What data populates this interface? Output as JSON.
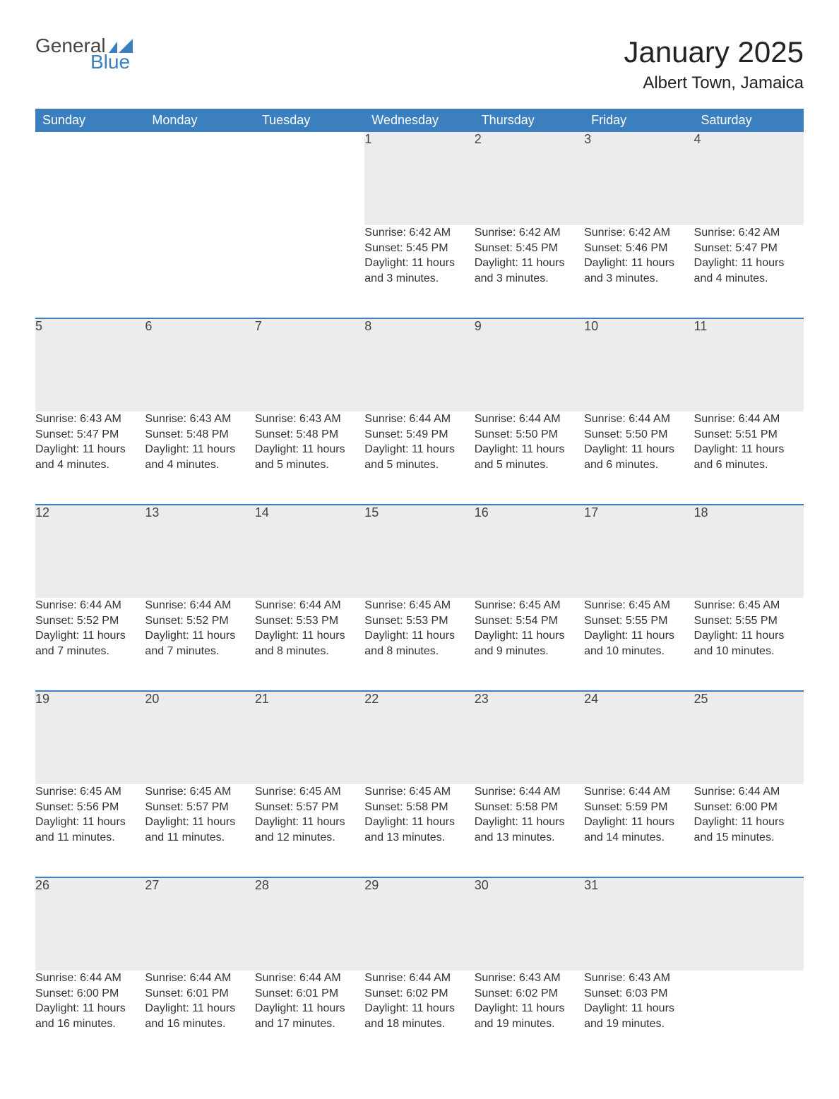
{
  "brand": {
    "line1": "General",
    "line2": "Blue",
    "accent": "#3b7fbf",
    "text": "#444444"
  },
  "title": "January 2025",
  "location": "Albert Town, Jamaica",
  "colors": {
    "header_bg": "#3b7fbf",
    "header_text": "#ffffff",
    "daynum_bg": "#ececec",
    "divider": "#3b7fbf",
    "body_text": "#333333",
    "background": "#ffffff"
  },
  "typography": {
    "title_fontsize": 42,
    "location_fontsize": 24,
    "header_fontsize": 18,
    "daynum_fontsize": 18,
    "cell_fontsize": 16,
    "font_family": "Arial"
  },
  "day_headers": [
    "Sunday",
    "Monday",
    "Tuesday",
    "Wednesday",
    "Thursday",
    "Friday",
    "Saturday"
  ],
  "weeks": [
    {
      "first": true,
      "days": [
        null,
        null,
        null,
        {
          "n": "1",
          "sunrise": "6:42 AM",
          "sunset": "5:45 PM",
          "daylight": "11 hours and 3 minutes."
        },
        {
          "n": "2",
          "sunrise": "6:42 AM",
          "sunset": "5:45 PM",
          "daylight": "11 hours and 3 minutes."
        },
        {
          "n": "3",
          "sunrise": "6:42 AM",
          "sunset": "5:46 PM",
          "daylight": "11 hours and 3 minutes."
        },
        {
          "n": "4",
          "sunrise": "6:42 AM",
          "sunset": "5:47 PM",
          "daylight": "11 hours and 4 minutes."
        }
      ]
    },
    {
      "days": [
        {
          "n": "5",
          "sunrise": "6:43 AM",
          "sunset": "5:47 PM",
          "daylight": "11 hours and 4 minutes."
        },
        {
          "n": "6",
          "sunrise": "6:43 AM",
          "sunset": "5:48 PM",
          "daylight": "11 hours and 4 minutes."
        },
        {
          "n": "7",
          "sunrise": "6:43 AM",
          "sunset": "5:48 PM",
          "daylight": "11 hours and 5 minutes."
        },
        {
          "n": "8",
          "sunrise": "6:44 AM",
          "sunset": "5:49 PM",
          "daylight": "11 hours and 5 minutes."
        },
        {
          "n": "9",
          "sunrise": "6:44 AM",
          "sunset": "5:50 PM",
          "daylight": "11 hours and 5 minutes."
        },
        {
          "n": "10",
          "sunrise": "6:44 AM",
          "sunset": "5:50 PM",
          "daylight": "11 hours and 6 minutes."
        },
        {
          "n": "11",
          "sunrise": "6:44 AM",
          "sunset": "5:51 PM",
          "daylight": "11 hours and 6 minutes."
        }
      ]
    },
    {
      "days": [
        {
          "n": "12",
          "sunrise": "6:44 AM",
          "sunset": "5:52 PM",
          "daylight": "11 hours and 7 minutes."
        },
        {
          "n": "13",
          "sunrise": "6:44 AM",
          "sunset": "5:52 PM",
          "daylight": "11 hours and 7 minutes."
        },
        {
          "n": "14",
          "sunrise": "6:44 AM",
          "sunset": "5:53 PM",
          "daylight": "11 hours and 8 minutes."
        },
        {
          "n": "15",
          "sunrise": "6:45 AM",
          "sunset": "5:53 PM",
          "daylight": "11 hours and 8 minutes."
        },
        {
          "n": "16",
          "sunrise": "6:45 AM",
          "sunset": "5:54 PM",
          "daylight": "11 hours and 9 minutes."
        },
        {
          "n": "17",
          "sunrise": "6:45 AM",
          "sunset": "5:55 PM",
          "daylight": "11 hours and 10 minutes."
        },
        {
          "n": "18",
          "sunrise": "6:45 AM",
          "sunset": "5:55 PM",
          "daylight": "11 hours and 10 minutes."
        }
      ]
    },
    {
      "days": [
        {
          "n": "19",
          "sunrise": "6:45 AM",
          "sunset": "5:56 PM",
          "daylight": "11 hours and 11 minutes."
        },
        {
          "n": "20",
          "sunrise": "6:45 AM",
          "sunset": "5:57 PM",
          "daylight": "11 hours and 11 minutes."
        },
        {
          "n": "21",
          "sunrise": "6:45 AM",
          "sunset": "5:57 PM",
          "daylight": "11 hours and 12 minutes."
        },
        {
          "n": "22",
          "sunrise": "6:45 AM",
          "sunset": "5:58 PM",
          "daylight": "11 hours and 13 minutes."
        },
        {
          "n": "23",
          "sunrise": "6:44 AM",
          "sunset": "5:58 PM",
          "daylight": "11 hours and 13 minutes."
        },
        {
          "n": "24",
          "sunrise": "6:44 AM",
          "sunset": "5:59 PM",
          "daylight": "11 hours and 14 minutes."
        },
        {
          "n": "25",
          "sunrise": "6:44 AM",
          "sunset": "6:00 PM",
          "daylight": "11 hours and 15 minutes."
        }
      ]
    },
    {
      "days": [
        {
          "n": "26",
          "sunrise": "6:44 AM",
          "sunset": "6:00 PM",
          "daylight": "11 hours and 16 minutes."
        },
        {
          "n": "27",
          "sunrise": "6:44 AM",
          "sunset": "6:01 PM",
          "daylight": "11 hours and 16 minutes."
        },
        {
          "n": "28",
          "sunrise": "6:44 AM",
          "sunset": "6:01 PM",
          "daylight": "11 hours and 17 minutes."
        },
        {
          "n": "29",
          "sunrise": "6:44 AM",
          "sunset": "6:02 PM",
          "daylight": "11 hours and 18 minutes."
        },
        {
          "n": "30",
          "sunrise": "6:43 AM",
          "sunset": "6:02 PM",
          "daylight": "11 hours and 19 minutes."
        },
        {
          "n": "31",
          "sunrise": "6:43 AM",
          "sunset": "6:03 PM",
          "daylight": "11 hours and 19 minutes."
        },
        null
      ]
    }
  ],
  "labels": {
    "sunrise": "Sunrise: ",
    "sunset": "Sunset: ",
    "daylight": "Daylight: "
  }
}
